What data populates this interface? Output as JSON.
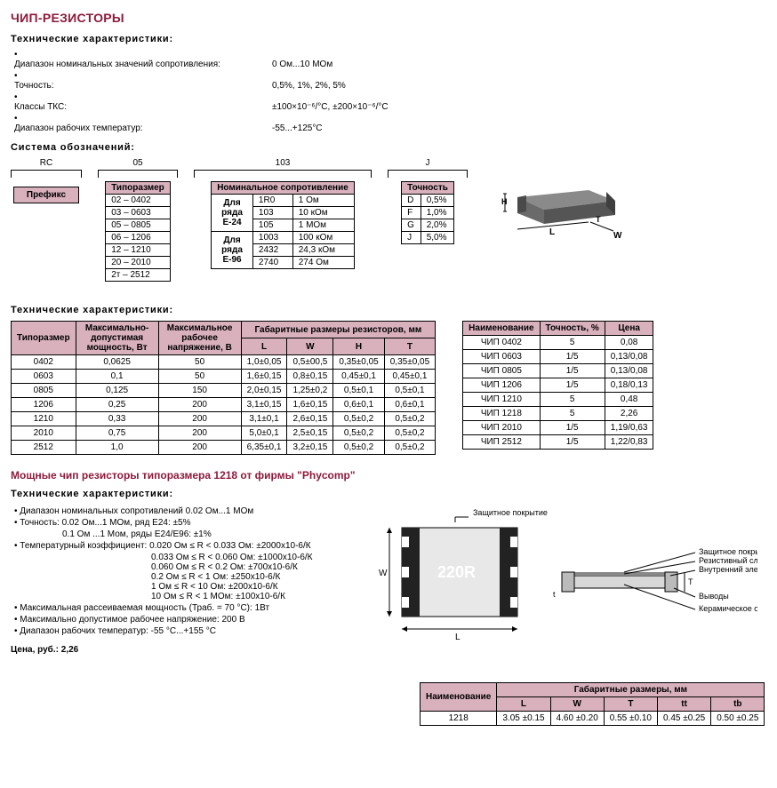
{
  "title": "ЧИП-РЕЗИСТОРЫ",
  "section_specs_header": "Технические  характеристики:",
  "specs1": [
    {
      "label": "Диапазон номинальных значений сопротивления:",
      "value": "0 Ом...10 МОм"
    },
    {
      "label": "Точность:",
      "value": "0,5%, 1%, 2%, 5%"
    },
    {
      "label": "Классы ТКС:",
      "value": "±100×10⁻⁶/°C,  ±200×10⁻⁶/°C"
    },
    {
      "label": "Диапазон рабочих температур:",
      "value": "-55...+125°C"
    }
  ],
  "sys_header": "Система обозначений:",
  "sys": {
    "rc": "RC",
    "o5": "05",
    "o103": "103",
    "oj": "J",
    "prefix": "Префикс",
    "size_header": "Типоразмер",
    "sizes": [
      [
        "02 – 0402"
      ],
      [
        "03 – 0603"
      ],
      [
        "05 – 0805"
      ],
      [
        "06 – 1206"
      ],
      [
        "12 – 1210"
      ],
      [
        "20 – 2010"
      ],
      [
        "2т – 2512"
      ]
    ],
    "nom_header": "Номинальное сопротивление",
    "nom_rows": [
      [
        "",
        "1R0",
        "1 Ом"
      ],
      [
        "Для",
        "103",
        "10 кОм"
      ],
      [
        "ряда",
        "105",
        "1 МОм"
      ],
      [
        "Е-24",
        "",
        ""
      ],
      [
        "",
        "1003",
        "100 кОм"
      ],
      [
        "Для",
        "2432",
        "24,3 кОм"
      ],
      [
        "ряда",
        "2740",
        "274 Ом"
      ],
      [
        "Е-96",
        "",
        ""
      ]
    ],
    "acc_header": "Точность",
    "acc_rows": [
      [
        "D",
        "0,5%"
      ],
      [
        "F",
        "1,0%"
      ],
      [
        "G",
        "2,0%"
      ],
      [
        "J",
        "5,0%"
      ]
    ]
  },
  "table1_title": "Технические характеристики:",
  "table1": {
    "headers": [
      "Типоразмер",
      "Максимально-допустимая мощность, Вт",
      "Максимальное рабочее напряжение, В",
      "L",
      "W",
      "H",
      "T"
    ],
    "span_header": "Габаритные размеры резисторов, мм",
    "rows": [
      [
        "0402",
        "0,0625",
        "50",
        "1,0±0,05",
        "0,5±00,5",
        "0,35±0,05",
        "0,35±0,05"
      ],
      [
        "0603",
        "0,1",
        "50",
        "1,6±0,15",
        "0,8±0,15",
        "0,45±0,1",
        "0,45±0,1"
      ],
      [
        "0805",
        "0,125",
        "150",
        "2,0±0,15",
        "1,25±0,2",
        "0,5±0,1",
        "0,5±0,1"
      ],
      [
        "1206",
        "0,25",
        "200",
        "3,1±0,15",
        "1,6±0,15",
        "0,6±0,1",
        "0,6±0,1"
      ],
      [
        "1210",
        "0,33",
        "200",
        "3,1±0,1",
        "2,6±0,15",
        "0,5±0,2",
        "0,5±0,2"
      ],
      [
        "2010",
        "0,75",
        "200",
        "5,0±0,1",
        "2,5±0,15",
        "0,5±0,2",
        "0,5±0,2"
      ],
      [
        "2512",
        "1,0",
        "200",
        "6,35±0,1",
        "3,2±0,15",
        "0,5±0,2",
        "0,5±0,2"
      ]
    ]
  },
  "table2": {
    "headers": [
      "Наименование",
      "Точность, %",
      "Цена"
    ],
    "rows": [
      [
        "ЧИП 0402",
        "5",
        "0,08"
      ],
      [
        "ЧИП 0603",
        "1/5",
        "0,13/0,08"
      ],
      [
        "ЧИП 0805",
        "1/5",
        "0,13/0,08"
      ],
      [
        "ЧИП 1206",
        "1/5",
        "0,18/0,13"
      ],
      [
        "ЧИП 1210",
        "5",
        "0,48"
      ],
      [
        "ЧИП 1218",
        "5",
        "2,26"
      ],
      [
        "ЧИП 2010",
        "1/5",
        "1,19/0,63"
      ],
      [
        "ЧИП 2512",
        "1/5",
        "1,22/0,83"
      ]
    ]
  },
  "phycomp_title": "Мощные чип резисторы типоразмера 1218 от фирмы  \"Phycomp\"",
  "phycomp_specs_header": "Технические  характеристики:",
  "phycomp_bullets": [
    "Диапазон номинальных сопротивлений 0.02 Ом...1 МОм",
    "Точность: 0.02 Ом...1 МОм, ряд Е24: ±5%"
  ],
  "phycomp_indent1": "0.1 Ом ...1 Мом, ряды Е24/Е96: ±1%",
  "phycomp_tk_label": "Температурный коэффициент:",
  "phycomp_tk": [
    "0.020 Ом ≤ R < 0.033 Ом: ±2000х10-6/К",
    "0.033 Ом ≤ R < 0.060 Ом: ±1000х10-6/К",
    "0.060 Ом ≤ R < 0.2 Ом: ±700х10-6/К",
    "0.2 Ом ≤ R <  1 Ом: ±250х10-6/К",
    "1 Ом ≤ R < 10 Ом: ±200х10-6/К",
    "10 Ом ≤ R < 1 МОм: ±100х10-6/К"
  ],
  "phycomp_bullets2": [
    "Максимальная рассеиваемая мощность (Траб. = 70 °С): 1Вт",
    "Максимально допустимое рабочее напряжение: 200 В",
    "Диапазон рабочих температур: -55 °С...+155 °С"
  ],
  "price": "Цена, руб.: 2,26",
  "phycomp_table": {
    "h1": "Наименование",
    "h2": "Габаритные размеры, мм",
    "sub": [
      "L",
      "W",
      "T",
      "tt",
      "tb"
    ],
    "row": [
      "1218",
      "3.05 ±0.15",
      "4.60 ±0.20",
      "0.55 ±0.10",
      "0.45 ±0.25",
      "0.50 ±0.25"
    ]
  },
  "diagram_labels": {
    "top": "Защитное покрытие",
    "r1": "Защитное покрытие",
    "r2": "Резистивный слой",
    "r3": "Внутренний электрод",
    "r4": "Выводы",
    "r5": "Керамическое основание",
    "chip_text": "220R",
    "L": "L",
    "W": "W",
    "T": "T",
    "H": "H",
    "t": "t"
  },
  "colors": {
    "accent": "#8d1a3b",
    "header_bg": "#d8b1bd",
    "border": "#000000",
    "chip_body": "#7a7a7a",
    "chip_end": "#555555"
  }
}
